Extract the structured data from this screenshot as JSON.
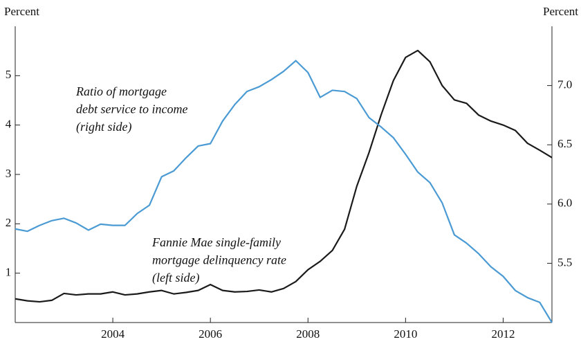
{
  "chart_data": {
    "type": "line",
    "y_label": "Percent",
    "y2_label": "Percent",
    "x": [
      2002,
      2002.25,
      2002.5,
      2002.75,
      2003,
      2003.25,
      2003.5,
      2003.75,
      2004,
      2004.25,
      2004.5,
      2004.75,
      2005,
      2005.25,
      2005.5,
      2005.75,
      2006,
      2006.25,
      2006.5,
      2006.75,
      2007,
      2007.25,
      2007.5,
      2007.75,
      2008,
      2008.25,
      2008.5,
      2008.75,
      2009,
      2009.25,
      2009.5,
      2009.75,
      2010,
      2010.25,
      2010.5,
      2010.75,
      2011,
      2011.25,
      2011.5,
      2011.75,
      2012,
      2012.25,
      2012.5,
      2012.75,
      2013
    ],
    "series": [
      {
        "color": "#1a1a1a",
        "axis": "y",
        "values": [
          0.48,
          0.44,
          0.42,
          0.45,
          0.59,
          0.56,
          0.58,
          0.58,
          0.62,
          0.56,
          0.58,
          0.62,
          0.65,
          0.58,
          0.61,
          0.65,
          0.77,
          0.65,
          0.62,
          0.63,
          0.66,
          0.62,
          0.69,
          0.83,
          1.07,
          1.24,
          1.46,
          1.89,
          2.76,
          3.44,
          4.21,
          4.9,
          5.37,
          5.51,
          5.28,
          4.8,
          4.51,
          4.44,
          4.2,
          4.08,
          4.0,
          3.89,
          3.63,
          3.49,
          3.34
        ]
      },
      {
        "color": "#4a9ad4",
        "axis": "y2",
        "values": [
          5.79,
          5.77,
          5.82,
          5.86,
          5.88,
          5.84,
          5.78,
          5.83,
          5.82,
          5.82,
          5.92,
          5.99,
          6.23,
          6.28,
          6.39,
          6.49,
          6.51,
          6.7,
          6.84,
          6.95,
          6.99,
          7.05,
          7.12,
          7.21,
          7.11,
          6.9,
          6.96,
          6.95,
          6.89,
          6.73,
          6.65,
          6.56,
          6.42,
          6.27,
          6.18,
          6.01,
          5.74,
          5.67,
          5.58,
          5.47,
          5.39,
          5.27,
          5.21,
          5.17,
          5.0
        ]
      }
    ],
    "annotations": [
      {
        "lines": [
          "Ratio of mortgage",
          "debt service to income",
          "(right side)"
        ]
      },
      {
        "lines": [
          "Fannie Mae single-family",
          "mortgage delinquency rate",
          "(left side)"
        ]
      }
    ],
    "xlim": [
      2002,
      2013
    ],
    "xticks": [
      2004,
      2006,
      2008,
      2010,
      2012
    ],
    "ylim": [
      0,
      6
    ],
    "yticks": [
      1,
      2,
      3,
      4,
      5
    ],
    "y2lim": [
      5.0,
      7.5
    ],
    "y2ticks": [
      {
        "value": 5.5,
        "label": "5.5"
      },
      {
        "value": 6.0,
        "label": "6.0"
      },
      {
        "value": 6.5,
        "label": "6.5"
      },
      {
        "value": 7.0,
        "label": "7.0"
      }
    ]
  }
}
